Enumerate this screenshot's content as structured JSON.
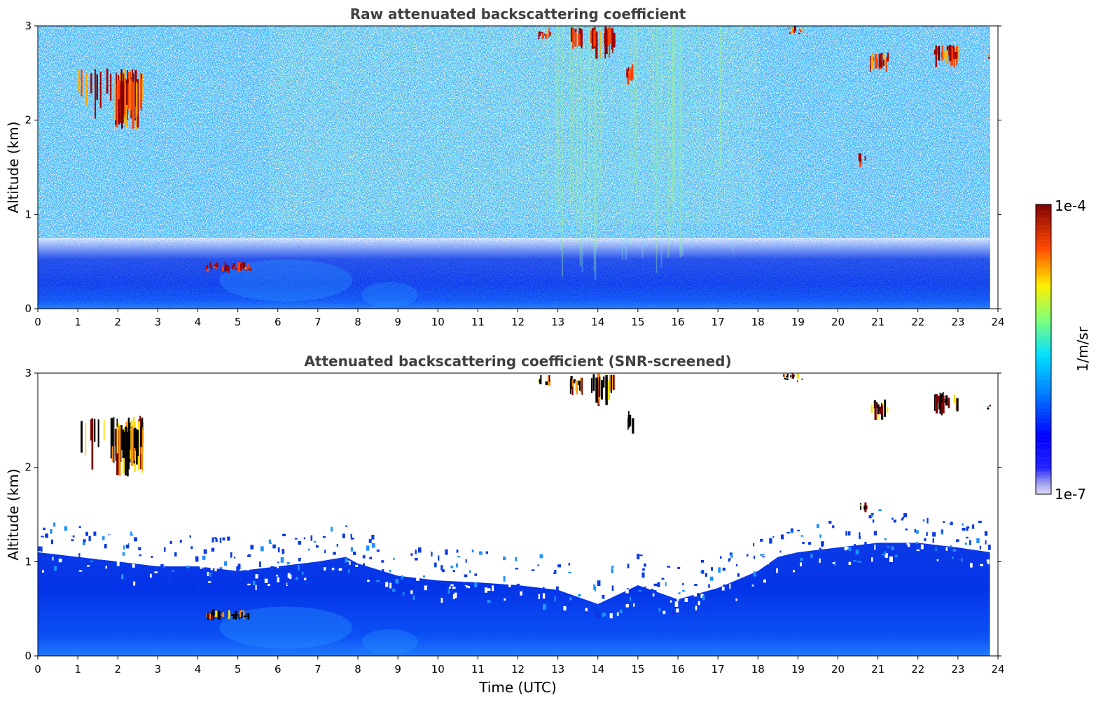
{
  "chart_data": [
    {
      "type": "heatmap",
      "title": "Raw attenuated backscattering coefficient",
      "xlabel": "",
      "ylabel": "Altitude (km)",
      "xlim": [
        0,
        24
      ],
      "ylim": [
        0,
        3
      ],
      "x_ticks": [
        "0",
        "1",
        "2",
        "3",
        "4",
        "5",
        "6",
        "7",
        "8",
        "9",
        "10",
        "11",
        "12",
        "13",
        "14",
        "15",
        "16",
        "17",
        "18",
        "19",
        "20",
        "21",
        "22",
        "23",
        "24"
      ],
      "y_ticks": [
        "0",
        "1",
        "2",
        "3"
      ],
      "data_end_time": 23.8,
      "colormap": "jet",
      "screened": false
    },
    {
      "type": "heatmap",
      "title": "Attenuated backscattering coefficient (SNR-screened)",
      "xlabel": "Time (UTC)",
      "ylabel": "Altitude (km)",
      "xlim": [
        0,
        24
      ],
      "ylim": [
        0,
        3
      ],
      "x_ticks": [
        "0",
        "1",
        "2",
        "3",
        "4",
        "5",
        "6",
        "7",
        "8",
        "9",
        "10",
        "11",
        "12",
        "13",
        "14",
        "15",
        "16",
        "17",
        "18",
        "19",
        "20",
        "21",
        "22",
        "23",
        "24"
      ],
      "y_ticks": [
        "0",
        "1",
        "2",
        "3"
      ],
      "data_end_time": 23.8,
      "colormap": "jet",
      "screened": true,
      "signal_top_km": [
        [
          0,
          1.1
        ],
        [
          1,
          1.05
        ],
        [
          2,
          1.0
        ],
        [
          3,
          0.95
        ],
        [
          4,
          0.95
        ],
        [
          5,
          0.9
        ],
        [
          6,
          0.95
        ],
        [
          7,
          1.0
        ],
        [
          7.7,
          1.05
        ],
        [
          8,
          0.98
        ],
        [
          9,
          0.85
        ],
        [
          10,
          0.8
        ],
        [
          11,
          0.78
        ],
        [
          12,
          0.75
        ],
        [
          13,
          0.7
        ],
        [
          14,
          0.55
        ],
        [
          15,
          0.75
        ],
        [
          16,
          0.6
        ],
        [
          17,
          0.72
        ],
        [
          18,
          0.9
        ],
        [
          18.5,
          1.05
        ],
        [
          19,
          1.1
        ],
        [
          20,
          1.15
        ],
        [
          21,
          1.2
        ],
        [
          22,
          1.2
        ],
        [
          23,
          1.15
        ],
        [
          23.8,
          1.1
        ]
      ]
    }
  ],
  "colorbar": {
    "label": "1/m/sr",
    "max_label": "1e-4",
    "min_label": "1e-7",
    "scale": "log"
  }
}
